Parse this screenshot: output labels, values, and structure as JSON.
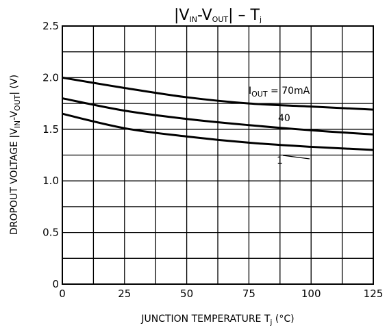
{
  "chart_data": {
    "type": "line",
    "title": {
      "main": "|V",
      "sub1": "IN",
      "mid": "-V",
      "sub2": "OUT",
      "tail": "|  –  T",
      "sub3": "j"
    },
    "xlabel": {
      "main": "JUNCTION TEMPERATURE   T",
      "sub": "j",
      "unit": "   (°C)"
    },
    "ylabel": {
      "main": "DROPOUT VOLTAGE   |V",
      "sub1": "IN",
      "mid": "-V",
      "sub2": "OUT",
      "unit": "|    (V)"
    },
    "x_ticks": [
      "0",
      "25",
      "50",
      "75",
      "100",
      "125"
    ],
    "y_ticks": [
      "0",
      "0.5",
      "1.0",
      "1.5",
      "2.0",
      "2.5"
    ],
    "xlim": [
      0,
      125
    ],
    "ylim": [
      0,
      2.5
    ],
    "grid": true,
    "x": [
      0,
      25,
      50,
      75,
      100,
      125
    ],
    "series": [
      {
        "name": "I_OUT = 70mA",
        "values": [
          2.0,
          1.9,
          1.81,
          1.75,
          1.72,
          1.69
        ]
      },
      {
        "name": "40",
        "values": [
          1.8,
          1.68,
          1.6,
          1.54,
          1.49,
          1.45
        ]
      },
      {
        "name": "1",
        "values": [
          1.65,
          1.51,
          1.43,
          1.37,
          1.33,
          1.3
        ]
      }
    ],
    "annotations": {
      "iout_prefix": "I",
      "iout_sub": "OUT",
      "iout_value": " = 70mA",
      "label_40": "40",
      "label_1": "1"
    }
  }
}
